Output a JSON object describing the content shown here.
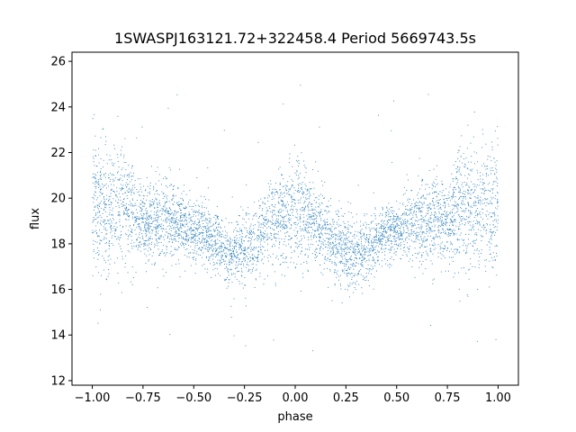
{
  "chart_data": {
    "type": "scatter",
    "title": "1SWASPJ163121.72+322458.4 Period 5669743.5s",
    "xlabel": "phase",
    "ylabel": "flux",
    "xlim": [
      -1.1,
      1.1
    ],
    "ylim": [
      11.8,
      26.4
    ],
    "x_ticks": [
      -1.0,
      -0.75,
      -0.5,
      -0.25,
      0.0,
      0.25,
      0.5,
      0.75,
      1.0
    ],
    "x_tick_labels": [
      "−1.00",
      "−0.75",
      "−0.50",
      "−0.25",
      "0.00",
      "0.25",
      "0.50",
      "0.75",
      "1.00"
    ],
    "y_ticks": [
      12,
      14,
      16,
      18,
      20,
      22,
      24,
      26
    ],
    "y_tick_labels": [
      "12",
      "14",
      "16",
      "18",
      "20",
      "22",
      "24",
      "26"
    ],
    "grid": false,
    "legend": "none",
    "marker_color": "#1f77b4",
    "series": [
      {
        "phase_range": [
          -1.0,
          1.0
        ],
        "profile": {
          "phase": [
            0.0,
            0.05,
            0.1,
            0.15,
            0.2,
            0.25,
            0.3,
            0.35,
            0.4,
            0.45,
            0.5,
            0.55,
            0.6,
            0.65,
            0.7,
            0.75,
            0.8,
            0.85,
            0.9,
            0.95,
            1.0
          ],
          "mean_flux": [
            19.6,
            19.3,
            19.0,
            18.6,
            18.0,
            17.8,
            17.5,
            17.7,
            18.2,
            18.5,
            18.6,
            18.8,
            19.0,
            19.1,
            19.0,
            18.8,
            19.6,
            19.7,
            19.5,
            19.8,
            19.6
          ],
          "spread": [
            1.6,
            1.1,
            1.0,
            0.9,
            0.9,
            0.9,
            0.8,
            0.8,
            0.8,
            0.7,
            0.7,
            0.8,
            0.9,
            1.0,
            1.0,
            0.9,
            1.4,
            1.5,
            1.4,
            1.6,
            1.6
          ]
        },
        "flux_range": [
          12.5,
          25.6
        ]
      }
    ]
  }
}
